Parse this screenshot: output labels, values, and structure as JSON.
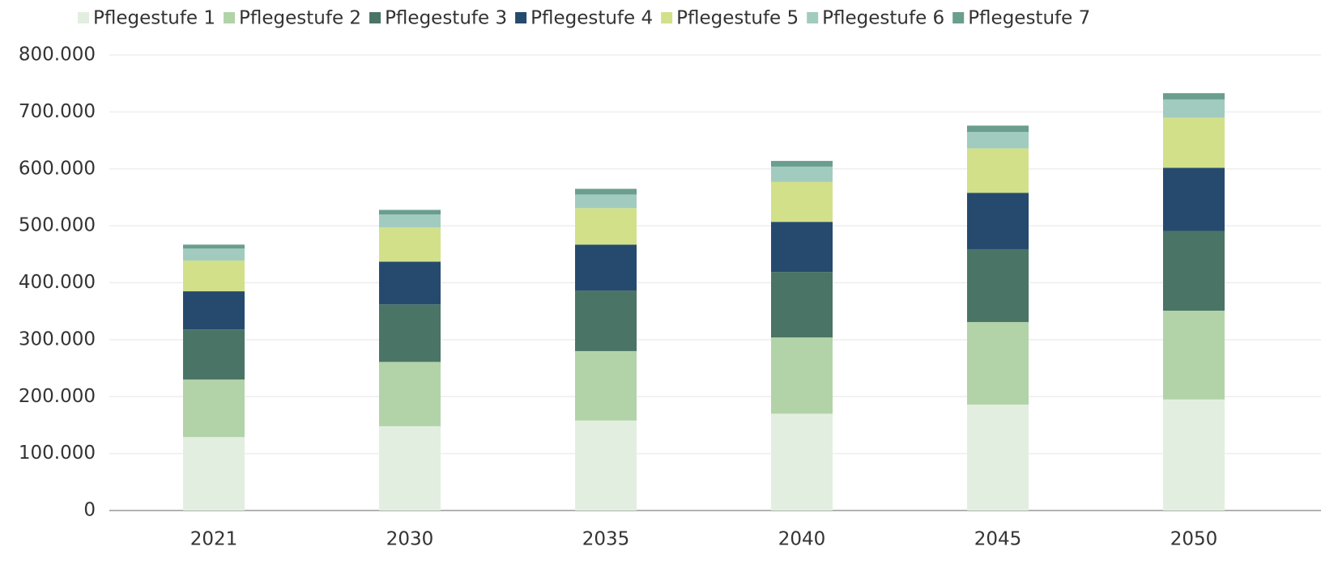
{
  "chart_data": {
    "type": "stacked_bar",
    "categories": [
      "2021",
      "2030",
      "2035",
      "2040",
      "2045",
      "2050"
    ],
    "series": [
      {
        "name": "Pflegestufe 1",
        "color": "#e2efe0",
        "values": [
          129000,
          148000,
          158000,
          170000,
          186000,
          195000
        ]
      },
      {
        "name": "Pflegestufe 2",
        "color": "#b2d3a8",
        "values": [
          101000,
          113000,
          122000,
          134000,
          145000,
          156000
        ]
      },
      {
        "name": "Pflegestufe 3",
        "color": "#4a7466",
        "values": [
          88000,
          101000,
          106000,
          115000,
          128000,
          140000
        ]
      },
      {
        "name": "Pflegestufe 4",
        "color": "#264a6e",
        "values": [
          67000,
          75000,
          81000,
          88000,
          99000,
          111000
        ]
      },
      {
        "name": "Pflegestufe 5",
        "color": "#d2e08a",
        "values": [
          54000,
          60000,
          64000,
          70000,
          78000,
          88000
        ]
      },
      {
        "name": "Pflegestufe 6",
        "color": "#a2cbc0",
        "values": [
          21000,
          23000,
          24000,
          27000,
          29000,
          32000
        ]
      },
      {
        "name": "Pflegestufe 7",
        "color": "#6a9e8e",
        "values": [
          7000,
          8000,
          10000,
          10000,
          11000,
          11000
        ]
      }
    ],
    "ylim": [
      0,
      800000
    ],
    "yticks": [
      0,
      {
        "value": 100000,
        "label": "100.000"
      },
      {
        "value": 200000,
        "label": "200.000"
      },
      {
        "value": 300000,
        "label": "300.000"
      },
      {
        "value": 400000,
        "label": "400.000"
      },
      {
        "value": 500000,
        "label": "500.000"
      },
      {
        "value": 600000,
        "label": "600.000"
      },
      {
        "value": 700000,
        "label": "700.000"
      },
      {
        "value": 800000,
        "label": "800.000"
      }
    ],
    "grid": true,
    "legend": "top"
  }
}
